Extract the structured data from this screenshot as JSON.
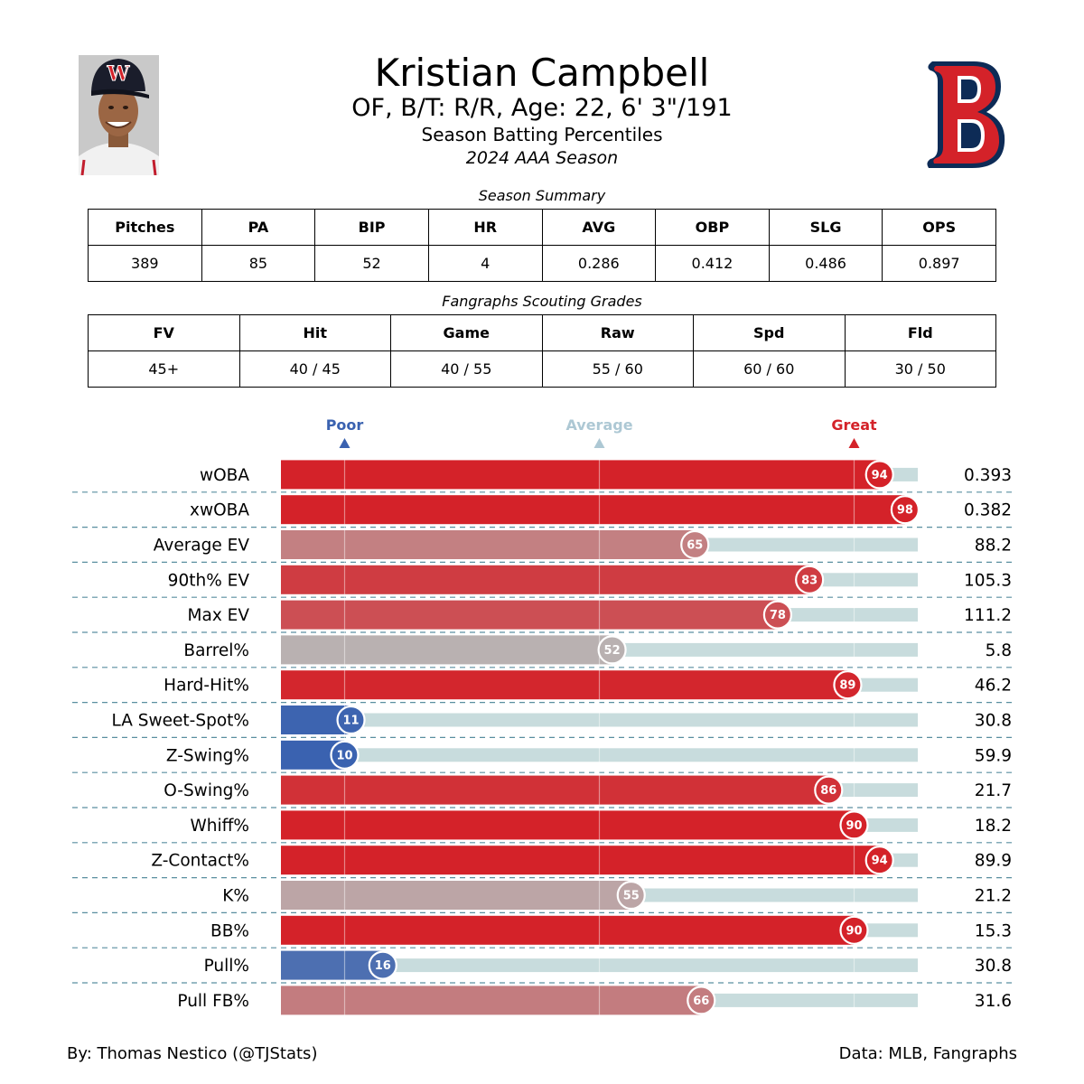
{
  "player": {
    "name": "Kristian Campbell",
    "bio": "OF, B/T: R/R, Age: 22, 6' 3\"/191",
    "subtitle": "Season Batting Percentiles",
    "season": "2024 AAA Season"
  },
  "season_summary": {
    "caption": "Season Summary",
    "headers": [
      "Pitches",
      "PA",
      "BIP",
      "HR",
      "AVG",
      "OBP",
      "SLG",
      "OPS"
    ],
    "values": [
      "389",
      "85",
      "52",
      "4",
      "0.286",
      "0.412",
      "0.486",
      "0.897"
    ]
  },
  "scouting_grades": {
    "caption": "Fangraphs Scouting Grades",
    "headers": [
      "FV",
      "Hit",
      "Game",
      "Raw",
      "Spd",
      "Fld"
    ],
    "values": [
      "45+",
      "40 / 45",
      "40 / 55",
      "55 / 60",
      "60 / 60",
      "30 / 50"
    ]
  },
  "chart_data": {
    "type": "bar",
    "orientation": "horizontal",
    "xlim": [
      0,
      100
    ],
    "reference_markers": [
      {
        "label": "Poor",
        "value": 10,
        "color": "#3A62B0"
      },
      {
        "label": "Average",
        "value": 50,
        "color": "#ADC8D4"
      },
      {
        "label": "Great",
        "value": 90,
        "color": "#D42229"
      }
    ],
    "categories": [
      "wOBA",
      "xwOBA",
      "Average EV",
      "90th% EV",
      "Max EV",
      "Barrel%",
      "Hard-Hit%",
      "LA Sweet-Spot%",
      "Z-Swing%",
      "O-Swing%",
      "Whiff%",
      "Z-Contact%",
      "K%",
      "BB%",
      "Pull%",
      "Pull FB%"
    ],
    "percentiles": [
      94,
      98,
      65,
      83,
      78,
      52,
      89,
      11,
      10,
      86,
      90,
      94,
      55,
      90,
      16,
      66
    ],
    "stat_values": [
      "0.393",
      "0.382",
      "88.2",
      "105.3",
      "111.2",
      "5.8",
      "46.2",
      "30.8",
      "59.9",
      "21.7",
      "18.2",
      "89.9",
      "21.2",
      "15.3",
      "30.8",
      "31.6"
    ],
    "track_color": "#C8DCDD",
    "grid": true
  },
  "footer": {
    "credit": "By: Thomas Nestico (@TJStats)",
    "source": "Data: MLB, Fangraphs"
  }
}
